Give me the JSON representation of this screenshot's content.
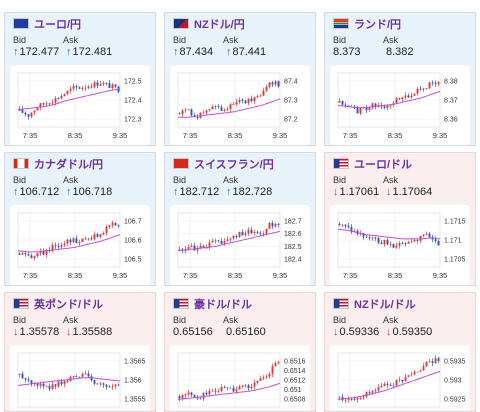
{
  "cards": [
    {
      "title": "ユーロ/円",
      "flag": "eu-flag-icon",
      "theme": "blue",
      "bid_label": "Bid",
      "ask_label": "Ask",
      "bid": "172.477",
      "ask": "172.481",
      "dir": "up",
      "y_ticks": [
        "172.5",
        "172.4",
        "172.3"
      ],
      "x_ticks": [
        "7:35",
        "8:35",
        "9:35"
      ]
    },
    {
      "title": "NZドル/円",
      "flag": "nz-flag-icon",
      "theme": "blue",
      "bid_label": "Bid",
      "ask_label": "Ask",
      "bid": "87.434",
      "ask": "87.441",
      "dir": "up",
      "y_ticks": [
        "87.4",
        "87.3",
        "87.2"
      ],
      "x_ticks": [
        "7:35",
        "8:35",
        "9:35"
      ]
    },
    {
      "title": "ランド/円",
      "flag": "za-flag-icon",
      "theme": "blue",
      "bid_label": "Bid",
      "ask_label": "Ask",
      "bid": "8.373",
      "ask": "8.382",
      "dir": "none",
      "y_ticks": [
        "8.38",
        "8.37",
        "8.36"
      ],
      "x_ticks": [
        "7:35",
        "8:35",
        "9:35"
      ]
    },
    {
      "title": "カナダドル/円",
      "flag": "ca-flag-icon",
      "theme": "blue",
      "bid_label": "Bid",
      "ask_label": "Ask",
      "bid": "106.712",
      "ask": "106.718",
      "dir": "up",
      "y_ticks": [
        "106.7",
        "106.6",
        "106.5"
      ],
      "x_ticks": [
        "7:35",
        "8:35",
        "9:35"
      ]
    },
    {
      "title": "スイスフラン/円",
      "flag": "ch-flag-icon",
      "theme": "blue",
      "bid_label": "Bid",
      "ask_label": "Ask",
      "bid": "182.712",
      "ask": "182.728",
      "dir": "up",
      "y_ticks": [
        "182.7",
        "182.6",
        "182.5",
        "182.4"
      ],
      "x_ticks": [
        "7:35",
        "8:35",
        "9:35"
      ]
    },
    {
      "title": "ユーロ/ドル",
      "flag": "us-flag-icon",
      "theme": "pink",
      "bid_label": "Bid",
      "ask_label": "Ask",
      "bid": "1.17061",
      "ask": "1.17064",
      "dir": "down",
      "y_ticks": [
        "1.1715",
        "1.171",
        "1.1705"
      ],
      "x_ticks": [
        "7:35",
        "8:35",
        "9:35"
      ]
    },
    {
      "title": "英ポンド/ドル",
      "flag": "us-flag-icon",
      "theme": "pink",
      "bid_label": "Bid",
      "ask_label": "Ask",
      "bid": "1.35578",
      "ask": "1.35588",
      "dir": "down",
      "y_ticks": [
        "1.3565",
        "1.356",
        "1.3555"
      ],
      "x_ticks": [
        "7:35",
        "8:35",
        "9:35"
      ]
    },
    {
      "title": "豪ドル/ドル",
      "flag": "us-flag-icon",
      "theme": "pink",
      "bid_label": "Bid",
      "ask_label": "Ask",
      "bid": "0.65156",
      "ask": "0.65160",
      "dir": "none",
      "y_ticks": [
        "0.6516",
        "0.6514",
        "0.6512",
        "0.651",
        "0.6508"
      ],
      "x_ticks": [
        "7:35",
        "8:35",
        "9:35"
      ]
    },
    {
      "title": "NZドル/ドル",
      "flag": "us-flag-icon",
      "theme": "pink",
      "bid_label": "Bid",
      "ask_label": "Ask",
      "bid": "0.59336",
      "ask": "0.59350",
      "dir": "down",
      "y_ticks": [
        "0.5935",
        "0.593",
        "0.5925"
      ],
      "x_ticks": [
        "7:35",
        "8:35",
        "9:35"
      ]
    }
  ],
  "chart_data": [
    {
      "type": "candlestick",
      "trend": [
        0.3,
        0.22,
        0.38,
        0.45,
        0.52,
        0.62,
        0.72,
        0.74,
        0.78,
        0.82,
        0.76,
        0.7
      ],
      "ma": [
        0.32,
        0.34,
        0.36,
        0.38,
        0.42,
        0.48,
        0.52,
        0.56,
        0.6,
        0.64,
        0.68,
        0.7
      ]
    },
    {
      "type": "candlestick",
      "trend": [
        0.25,
        0.3,
        0.2,
        0.28,
        0.35,
        0.3,
        0.42,
        0.48,
        0.52,
        0.6,
        0.82,
        0.8
      ],
      "ma": [
        0.18,
        0.18,
        0.2,
        0.22,
        0.24,
        0.26,
        0.28,
        0.32,
        0.36,
        0.4,
        0.46,
        0.52
      ]
    },
    {
      "type": "candlestick",
      "trend": [
        0.45,
        0.4,
        0.3,
        0.34,
        0.42,
        0.4,
        0.48,
        0.52,
        0.62,
        0.7,
        0.78,
        0.88
      ],
      "ma": [
        0.4,
        0.38,
        0.36,
        0.36,
        0.38,
        0.4,
        0.42,
        0.46,
        0.5,
        0.54,
        0.6,
        0.66
      ]
    },
    {
      "type": "candlestick",
      "trend": [
        0.25,
        0.18,
        0.22,
        0.3,
        0.4,
        0.45,
        0.5,
        0.48,
        0.55,
        0.6,
        0.78,
        0.82
      ],
      "ma": [
        0.3,
        0.28,
        0.28,
        0.3,
        0.32,
        0.34,
        0.36,
        0.4,
        0.44,
        0.48,
        0.54,
        0.6
      ]
    },
    {
      "type": "candlestick",
      "trend": [
        0.3,
        0.38,
        0.32,
        0.4,
        0.48,
        0.46,
        0.58,
        0.62,
        0.66,
        0.6,
        0.78,
        0.84
      ],
      "ma": [
        0.3,
        0.32,
        0.34,
        0.36,
        0.38,
        0.42,
        0.46,
        0.5,
        0.54,
        0.58,
        0.62,
        0.66
      ]
    },
    {
      "type": "candlestick",
      "trend": [
        0.8,
        0.7,
        0.6,
        0.55,
        0.5,
        0.45,
        0.4,
        0.45,
        0.5,
        0.55,
        0.58,
        0.45
      ],
      "ma": [
        0.7,
        0.68,
        0.64,
        0.6,
        0.58,
        0.56,
        0.54,
        0.52,
        0.52,
        0.52,
        0.54,
        0.52
      ]
    },
    {
      "type": "candlestick",
      "trend": [
        0.6,
        0.5,
        0.4,
        0.35,
        0.42,
        0.5,
        0.55,
        0.6,
        0.52,
        0.4,
        0.35,
        0.45
      ],
      "ma": [
        0.4,
        0.42,
        0.44,
        0.46,
        0.48,
        0.5,
        0.52,
        0.54,
        0.54,
        0.52,
        0.5,
        0.48
      ]
    },
    {
      "type": "candlestick",
      "trend": [
        0.2,
        0.22,
        0.18,
        0.25,
        0.3,
        0.34,
        0.3,
        0.36,
        0.4,
        0.48,
        0.65,
        0.88
      ],
      "ma": [
        0.14,
        0.16,
        0.18,
        0.2,
        0.22,
        0.24,
        0.26,
        0.28,
        0.3,
        0.34,
        0.38,
        0.44
      ]
    },
    {
      "type": "candlestick",
      "trend": [
        0.18,
        0.15,
        0.2,
        0.25,
        0.3,
        0.38,
        0.45,
        0.52,
        0.62,
        0.72,
        0.84,
        0.9
      ],
      "ma": [
        0.14,
        0.16,
        0.18,
        0.22,
        0.26,
        0.3,
        0.36,
        0.42,
        0.48,
        0.54,
        0.6,
        0.66
      ]
    }
  ]
}
